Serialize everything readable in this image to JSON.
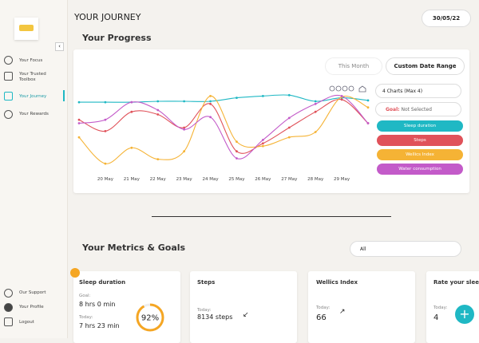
{
  "sidebar": {
    "nav": [
      "Your Focus",
      "Your Trusted Toolbox",
      "Your Journey",
      "Your Rewards"
    ],
    "bottom": [
      "Our Support",
      "Your Profile",
      "Logout"
    ]
  },
  "header": {
    "title": "YOUR JOURNEY",
    "date": "30/05/22"
  },
  "progress": {
    "title": "Your Progress",
    "period": "This Month",
    "custom_button": "Custom Date Range",
    "charts_select": "4 Charts (Max 4)",
    "goal_label": "Goal:",
    "goal_value": "Not Selected",
    "chart_data": {
      "type": "line",
      "categories": [
        null,
        "20 May",
        "21 May",
        "22 May",
        "23 May",
        "24 May",
        "25 May",
        "26 May",
        "27 May",
        "28 May",
        "29 May",
        null
      ],
      "ylim": [
        0,
        100
      ],
      "series": [
        {
          "name": "Sleep duration",
          "color": "#1fb8c4",
          "values": [
            79,
            79,
            79,
            80,
            80,
            80,
            84,
            86,
            87,
            80,
            84,
            81
          ]
        },
        {
          "name": "Steps",
          "color": "#e0525a",
          "values": [
            59,
            46,
            68,
            65,
            50,
            77,
            23,
            32,
            50,
            68,
            82,
            55
          ]
        },
        {
          "name": "Wellics Index",
          "color": "#f5b335",
          "values": [
            39,
            9,
            27,
            14,
            23,
            86,
            34,
            29,
            39,
            45,
            85,
            73
          ]
        },
        {
          "name": "Water consumption",
          "color": "#c35bc9",
          "values": [
            55,
            59,
            79,
            70,
            48,
            62,
            15,
            36,
            61,
            77,
            86,
            55
          ]
        }
      ]
    }
  },
  "metrics": {
    "title": "Your Metrics & Goals",
    "filter": "All",
    "cards": [
      {
        "title": "Sleep duration",
        "goal_label": "Goal:",
        "goal": "8 hrs 0 min",
        "today_label": "Today:",
        "today": "7 hrs 23 min",
        "percent": 92,
        "percent_label": "92%"
      },
      {
        "title": "Steps",
        "today_label": "Today:",
        "today": "8134 steps"
      },
      {
        "title": "Wellics Index",
        "today_label": "Today:",
        "today": "66"
      },
      {
        "title": "Rate your sleep",
        "today_label": "Today:",
        "today": "4"
      }
    ]
  }
}
